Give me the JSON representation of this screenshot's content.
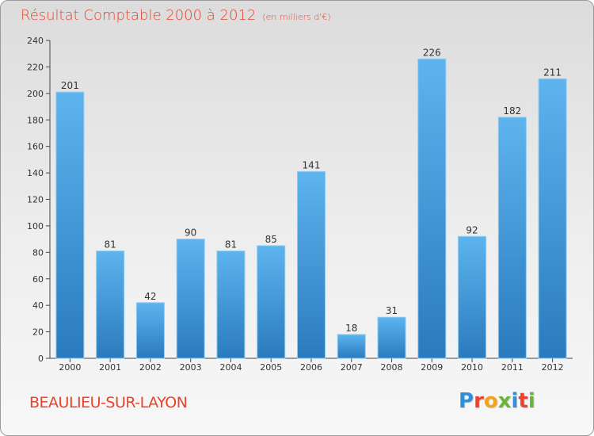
{
  "header": {
    "title": "Résultat Comptable 2000 à 2012",
    "subtitle": "(en milliers d'€)"
  },
  "footer": {
    "city": "BEAULIEU-SUR-LAYON",
    "logo_text": "Proxiti",
    "logo_colors": [
      "#2f8fd8",
      "#e8442f",
      "#f2a21b",
      "#6bb43a",
      "#2f8fd8",
      "#e8442f",
      "#6bb43a"
    ]
  },
  "colors": {
    "bar_light": "#5db4ee",
    "bar_dark": "#2a7bbd",
    "text": "#e8442f"
  },
  "chart_data": {
    "type": "bar",
    "categories": [
      "2000",
      "2001",
      "2002",
      "2003",
      "2004",
      "2005",
      "2006",
      "2007",
      "2008",
      "2009",
      "2010",
      "2011",
      "2012"
    ],
    "values": [
      201,
      81,
      42,
      90,
      81,
      85,
      141,
      18,
      31,
      226,
      92,
      182,
      211
    ],
    "ylim": [
      0,
      240
    ],
    "yticks": [
      0,
      20,
      40,
      60,
      80,
      100,
      120,
      140,
      160,
      180,
      200,
      220,
      240
    ],
    "grid": false,
    "legend": "none"
  }
}
